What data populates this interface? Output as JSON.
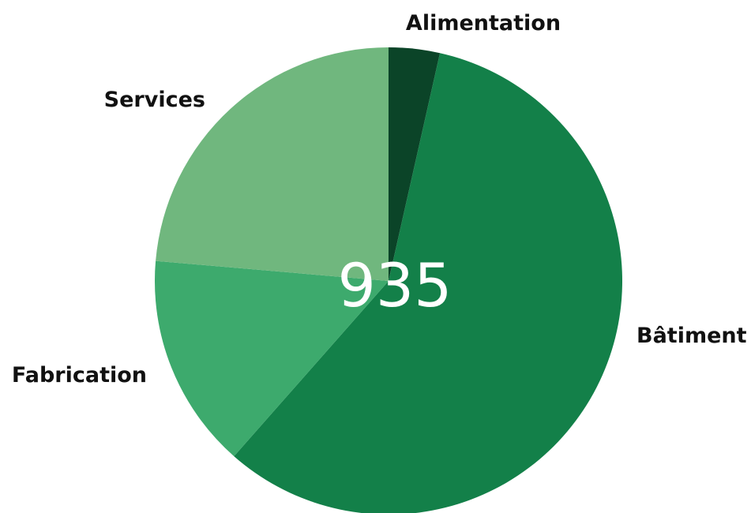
{
  "chart_data": {
    "type": "pie",
    "title": "",
    "center_label": "935",
    "slices": [
      {
        "label": "Alimentation",
        "value": 33,
        "color": "#0b4428"
      },
      {
        "label": "Bâtiment",
        "value": 542,
        "color": "#138049"
      },
      {
        "label": "Fabrication",
        "value": 139,
        "color": "#3daa6d"
      },
      {
        "label": "Services",
        "value": 221,
        "color": "#70b77e"
      }
    ]
  }
}
